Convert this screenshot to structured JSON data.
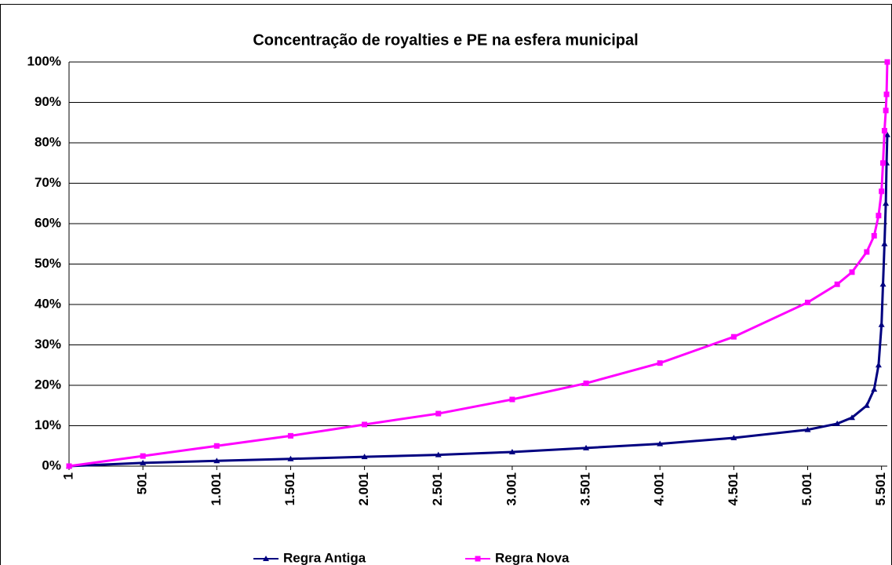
{
  "chart_data": {
    "type": "line",
    "title": "Concentração de royalties e PE na esfera municipal",
    "x": [
      1,
      501,
      1001,
      1501,
      2001,
      2501,
      3001,
      3501,
      4001,
      4501,
      5001,
      5201,
      5301,
      5401,
      5451,
      5481,
      5501,
      5511,
      5521,
      5530,
      5535,
      5540
    ],
    "series": [
      {
        "name": "Regra Antiga",
        "color": "#000080",
        "marker": "triangle",
        "values": [
          0,
          0.8,
          1.3,
          1.8,
          2.3,
          2.8,
          3.5,
          4.5,
          5.5,
          7,
          9,
          10.5,
          12,
          15,
          19,
          25,
          35,
          45,
          55,
          65,
          75,
          82
        ]
      },
      {
        "name": "Regra Nova",
        "color": "#ff00ff",
        "marker": "square",
        "values": [
          0,
          2.5,
          5,
          7.5,
          10.3,
          13,
          16.5,
          20.5,
          25.5,
          32,
          40.5,
          45,
          48,
          53,
          57,
          62,
          68,
          75,
          83,
          88,
          92,
          100
        ]
      }
    ],
    "xlim": [
      1,
      5540
    ],
    "xticks": [
      1,
      501,
      {
        "value": 1001,
        "label": "1.001"
      },
      {
        "value": 1501,
        "label": "1.501"
      },
      {
        "value": 2001,
        "label": "2.001"
      },
      {
        "value": 2501,
        "label": "2.501"
      },
      {
        "value": 3001,
        "label": "3.001"
      },
      {
        "value": 3501,
        "label": "3.501"
      },
      {
        "value": 4001,
        "label": "4.001"
      },
      {
        "value": 4501,
        "label": "4.501"
      },
      {
        "value": 5001,
        "label": "5.001"
      },
      {
        "value": 5501,
        "label": "5.501"
      }
    ],
    "ylim": [
      0,
      100
    ],
    "yticks": [
      {
        "value": 0,
        "label": "0%"
      },
      {
        "value": 10,
        "label": "10%"
      },
      {
        "value": 20,
        "label": "20%"
      },
      {
        "value": 30,
        "label": "30%"
      },
      {
        "value": 40,
        "label": "40%"
      },
      {
        "value": 50,
        "label": "50%"
      },
      {
        "value": 60,
        "label": "60%"
      },
      {
        "value": 70,
        "label": "70%"
      },
      {
        "value": 80,
        "label": "80%"
      },
      {
        "value": 90,
        "label": "90%"
      },
      {
        "value": {
          "value": 100,
          "label": "100%"
        }
      }
    ],
    "grid": true,
    "legend": "bottom"
  }
}
